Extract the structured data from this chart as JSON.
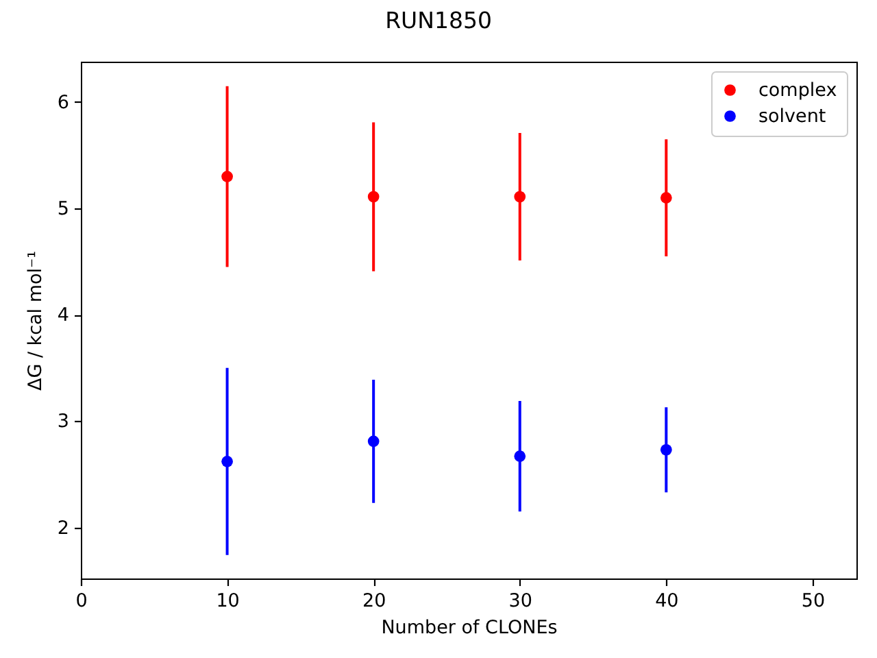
{
  "chart_data": {
    "type": "scatter",
    "title": "RUN1850",
    "xlabel": "Number of CLONEs",
    "ylabel": "ΔG / kcal mol⁻¹",
    "x": [
      10,
      20,
      30,
      40
    ],
    "series": [
      {
        "name": "complex",
        "color": "#ff0000",
        "values": [
          5.3,
          5.11,
          5.11,
          5.1
        ],
        "errors": [
          0.85,
          0.7,
          0.6,
          0.55
        ]
      },
      {
        "name": "solvent",
        "color": "#0000ff",
        "values": [
          2.62,
          2.81,
          2.67,
          2.73
        ],
        "errors": [
          0.88,
          0.58,
          0.52,
          0.4
        ]
      }
    ],
    "xlim": [
      0,
      53
    ],
    "ylim": [
      1.52,
      6.38
    ],
    "xticks": [
      0,
      10,
      20,
      30,
      40,
      50
    ],
    "yticks": [
      2,
      3,
      4,
      5,
      6
    ],
    "legend": "top right",
    "marker": "circle"
  }
}
